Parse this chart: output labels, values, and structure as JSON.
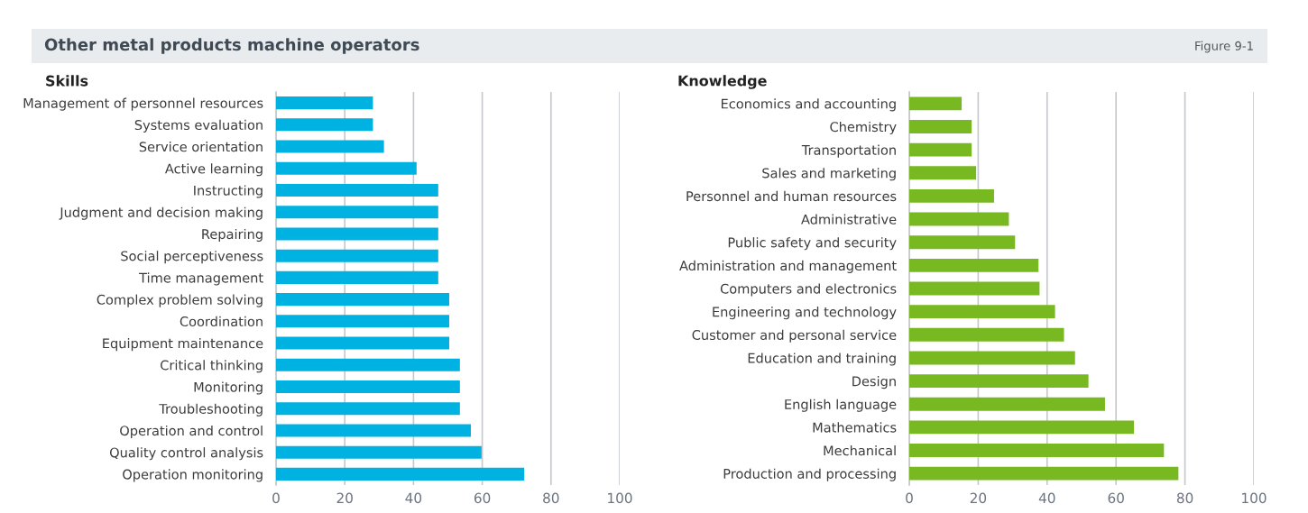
{
  "chart_data": [
    {
      "type": "bar",
      "orientation": "horizontal",
      "title": "Other metal products machine operators",
      "subtitle": "Skills",
      "annotations": [
        "Figure 9-1"
      ],
      "categories": [
        "Management of personnel resources",
        "Systems evaluation",
        "Service orientation",
        "Active learning",
        "Instructing",
        "Judgment and decision making",
        "Repairing",
        "Social perceptiveness",
        "Time management",
        "Complex problem solving",
        "Coordination",
        "Equipment maintenance",
        "Critical thinking",
        "Monitoring",
        "Troubleshooting",
        "Operation and control",
        "Quality control analysis",
        "Operation monitoring"
      ],
      "values": [
        28.2,
        28.2,
        31.4,
        40.9,
        47.2,
        47.2,
        47.2,
        47.2,
        47.2,
        50.4,
        50.4,
        50.4,
        53.5,
        53.5,
        53.5,
        56.7,
        59.8,
        72.2
      ],
      "color": "#00b2e2",
      "xlim": [
        0,
        100
      ],
      "xticks": [
        0,
        20,
        40,
        60,
        80,
        100
      ],
      "grid": "x"
    },
    {
      "type": "bar",
      "orientation": "horizontal",
      "title": "Knowledge",
      "categories": [
        "Economics and accounting",
        "Chemistry",
        "Transportation",
        "Sales and marketing",
        "Personnel and human resources",
        "Administrative",
        "Public safety and security",
        "Administration and management",
        "Computers and electronics",
        "Engineering and technology",
        "Customer and personal service",
        "Education and training",
        "Design",
        "English language",
        "Mathematics",
        "Mechanical",
        "Production and processing"
      ],
      "values": [
        15.2,
        18.1,
        18.1,
        19.4,
        24.6,
        28.9,
        30.7,
        37.5,
        37.8,
        42.3,
        44.9,
        48.1,
        52.0,
        56.8,
        65.2,
        73.9,
        78.1
      ],
      "color": "#78b922",
      "xlim": [
        0,
        100
      ],
      "xticks": [
        0,
        20,
        40,
        60,
        80,
        100
      ],
      "grid": "x"
    }
  ]
}
